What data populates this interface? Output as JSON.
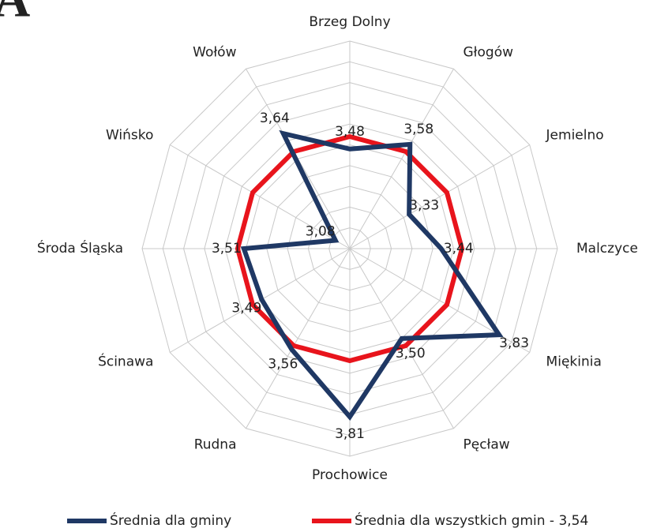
{
  "panel_label": "A",
  "chart_data": {
    "type": "radar",
    "categories": [
      "Brzeg Dolny",
      "Głogów",
      "Jemielno",
      "Malczyce",
      "Miękinia",
      "Pęcław",
      "Prochowice",
      "Rudna",
      "Ścinawa",
      "Środa Śląska",
      "Wińsko",
      "Wołów"
    ],
    "rlim": [
      3,
      4
    ],
    "rticks": [
      3,
      3.1,
      3.2,
      3.3,
      3.4,
      3.5,
      3.6,
      3.7,
      3.8,
      3.9,
      4
    ],
    "grid": true,
    "legend": "bottom",
    "series": [
      {
        "name": "Średnia dla gminy",
        "color": "#1f3864",
        "values": [
          3.48,
          3.58,
          3.33,
          3.44,
          3.83,
          3.5,
          3.81,
          3.56,
          3.49,
          3.51,
          3.08,
          3.64
        ],
        "value_labels": [
          "3,48",
          "3,58",
          "3,33",
          "3,44",
          "3,83",
          "3,50",
          "3,81",
          "3,56",
          "3,49",
          "3,51",
          "3,08",
          "3,64"
        ]
      },
      {
        "name": "Średnia dla wszystkich gmin - 3,54",
        "color": "#e8141c",
        "values": [
          3.54,
          3.54,
          3.54,
          3.54,
          3.54,
          3.54,
          3.54,
          3.54,
          3.54,
          3.54,
          3.54,
          3.54
        ]
      }
    ]
  }
}
